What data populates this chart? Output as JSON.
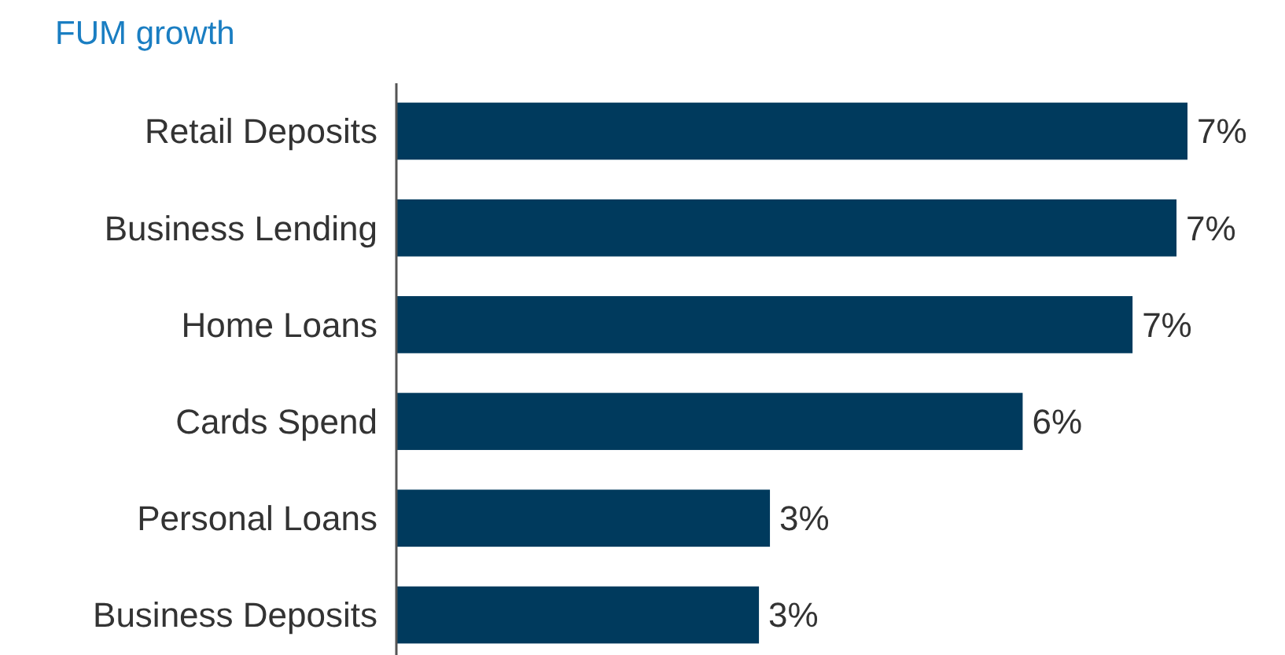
{
  "chart_data": {
    "type": "bar",
    "title": "FUM growth",
    "orientation": "horizontal",
    "categories": [
      "Retail Deposits",
      "Business Lending",
      "Home Loans",
      "Cards Spend",
      "Personal Loans",
      "Business Deposits"
    ],
    "values": [
      7.2,
      7.1,
      6.7,
      5.7,
      3.4,
      3.3
    ],
    "value_labels": [
      "7%",
      "7%",
      "7%",
      "6%",
      "3%",
      "3%"
    ],
    "color": "#003a5d"
  }
}
